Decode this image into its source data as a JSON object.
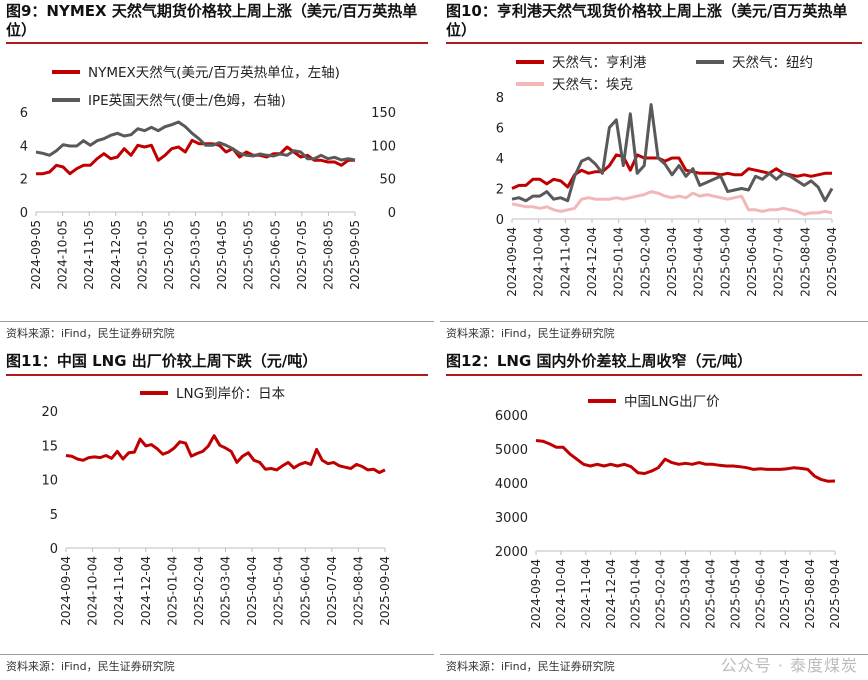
{
  "colors": {
    "accent": "#b0191e",
    "red": "#c00000",
    "gray": "#595959",
    "pink": "#f2b8b8"
  },
  "watermark": "公众号 · 泰度煤炭",
  "charts": [
    {
      "id": "c9",
      "title": "图9：NYMEX 天然气期货价格较上周上涨（美元/百万英热单位）",
      "source": "资料来源：iFind，民生证券研究院",
      "chart_data": {
        "type": "line",
        "title": "NYMEX天然气期货价格较上周上涨（美元/百万英热单位）",
        "x_labels": [
          "2024-09-05",
          "2024-10-05",
          "2024-11-05",
          "2024-12-05",
          "2025-01-05",
          "2025-02-05",
          "2025-03-05",
          "2025-04-05",
          "2025-05-05",
          "2025-06-05",
          "2025-07-05",
          "2025-08-05",
          "2025-09-05"
        ],
        "ylim": [
          0,
          6
        ],
        "yticks": [
          0,
          2,
          4,
          6
        ],
        "y2lim": [
          0,
          150
        ],
        "y2ticks": [
          0,
          50,
          100,
          150
        ],
        "series": [
          {
            "name": "NYMEX天然气(美元/百万英热单位，左轴)",
            "axis": "left",
            "color": "#c00000",
            "values": [
              2.3,
              2.3,
              2.4,
              2.8,
              2.7,
              2.3,
              2.6,
              2.8,
              2.8,
              3.2,
              3.5,
              3.2,
              3.3,
              3.8,
              3.4,
              4.0,
              3.9,
              4.0,
              3.1,
              3.4,
              3.8,
              3.9,
              3.6,
              4.3,
              4.1,
              4.1,
              4.1,
              4.0,
              3.6,
              3.8,
              3.3,
              3.6,
              3.4,
              3.4,
              3.3,
              3.5,
              3.5,
              3.9,
              3.6,
              3.3,
              3.4,
              3.1,
              3.1,
              3.0,
              3.0,
              2.8,
              3.1,
              3.1
            ]
          },
          {
            "name": "IPE英国天然气(便士/色姆，右轴)",
            "axis": "right",
            "color": "#595959",
            "values": [
              90,
              88,
              85,
              92,
              101,
              99,
              99,
              107,
              100,
              107,
              110,
              115,
              118,
              114,
              116,
              125,
              122,
              127,
              122,
              128,
              131,
              135,
              128,
              118,
              110,
              100,
              100,
              104,
              100,
              95,
              88,
              85,
              84,
              87,
              85,
              84,
              87,
              85,
              92,
              90,
              80,
              80,
              85,
              80,
              82,
              78,
              80,
              78
            ]
          }
        ]
      }
    },
    {
      "id": "c10",
      "title": "图10：亨利港天然气现货价格较上周上涨（美元/百万英热单位）",
      "source": "资料来源：iFind，民生证券研究院",
      "chart_data": {
        "type": "line",
        "title": "亨利港天然气现货价格较上周上涨（美元/百万英热单位）",
        "x_labels": [
          "2024-09-04",
          "2024-10-04",
          "2024-11-04",
          "2024-12-04",
          "2025-01-04",
          "2025-02-04",
          "2025-03-04",
          "2025-04-04",
          "2025-05-04",
          "2025-06-04",
          "2025-07-04",
          "2025-08-04",
          "2025-09-04"
        ],
        "ylim": [
          0,
          8
        ],
        "yticks": [
          0,
          2,
          4,
          6,
          8
        ],
        "series": [
          {
            "name": "天然气：亨利港",
            "color": "#c00000",
            "values": [
              2.0,
              2.2,
              2.2,
              2.6,
              2.6,
              2.3,
              2.6,
              2.5,
              2.1,
              2.9,
              3.2,
              3.0,
              3.1,
              3.1,
              3.5,
              4.2,
              4.1,
              3.2,
              4.2,
              4.0,
              4.0,
              4.0,
              3.8,
              4.0,
              4.0,
              3.2,
              3.1,
              3.0,
              3.0,
              3.0,
              2.9,
              3.0,
              2.9,
              2.9,
              3.3,
              3.2,
              3.1,
              3.0,
              3.3,
              3.0,
              2.9,
              2.8,
              2.9,
              2.8,
              2.9,
              3.0,
              3.0
            ]
          },
          {
            "name": "天然气：纽约",
            "color": "#595959",
            "values": [
              1.3,
              1.4,
              1.2,
              1.5,
              1.5,
              1.8,
              1.3,
              1.4,
              1.2,
              2.8,
              3.8,
              4.0,
              3.6,
              3.0,
              6.0,
              6.5,
              3.5,
              6.9,
              3.0,
              3.5,
              7.5,
              4.0,
              3.6,
              2.9,
              3.5,
              2.8,
              3.3,
              2.2,
              2.4,
              2.6,
              2.8,
              1.8,
              1.9,
              2.0,
              1.9,
              2.8,
              2.6,
              3.0,
              2.6,
              3.0,
              2.8,
              2.5,
              2.2,
              2.5,
              2.1,
              1.2,
              2.0
            ]
          },
          {
            "name": "天然气：埃克",
            "color": "#f2b8b8",
            "values": [
              1.0,
              0.9,
              0.8,
              0.8,
              0.7,
              0.8,
              0.6,
              0.5,
              0.6,
              0.7,
              1.3,
              1.4,
              1.3,
              1.3,
              1.3,
              1.4,
              1.3,
              1.4,
              1.5,
              1.6,
              1.8,
              1.7,
              1.5,
              1.4,
              1.5,
              1.4,
              1.7,
              1.5,
              1.6,
              1.5,
              1.4,
              1.3,
              1.4,
              1.5,
              0.6,
              0.6,
              0.5,
              0.6,
              0.6,
              0.7,
              0.6,
              0.5,
              0.3,
              0.4,
              0.4,
              0.5,
              0.4
            ]
          }
        ]
      }
    },
    {
      "id": "c11",
      "title": "图11：中国 LNG 出厂价较上周下跌（元/吨）",
      "source": "资料来源：iFind，民生证券研究院",
      "chart_data": {
        "type": "line",
        "title": "中国LNG出厂价较上周下跌（元/吨）",
        "x_labels": [
          "2024-09-04",
          "2024-10-04",
          "2024-11-04",
          "2024-12-04",
          "2025-01-04",
          "2025-02-04",
          "2025-03-04",
          "2025-04-04",
          "2025-05-04",
          "2025-06-04",
          "2025-07-04",
          "2025-08-04",
          "2025-09-04"
        ],
        "ylim": [
          0,
          20
        ],
        "yticks": [
          0,
          5,
          10,
          15,
          20
        ],
        "series": [
          {
            "name": "LNG到岸价：日本",
            "color": "#c00000",
            "values": [
              13.5,
              13.4,
              13.0,
              12.8,
              13.2,
              13.3,
              13.2,
              13.5,
              13.1,
              14.1,
              13.0,
              13.9,
              14.0,
              15.9,
              14.9,
              15.1,
              14.5,
              13.7,
              14.0,
              14.6,
              15.5,
              15.3,
              13.4,
              13.8,
              14.1,
              14.9,
              16.4,
              15.0,
              14.6,
              14.1,
              12.5,
              13.4,
              13.9,
              12.8,
              12.5,
              11.5,
              11.6,
              11.4,
              12.0,
              12.5,
              11.7,
              12.2,
              12.5,
              12.2,
              14.4,
              12.8,
              12.3,
              12.5,
              12.0,
              11.8,
              11.6,
              12.2,
              11.9,
              11.4,
              11.5,
              11.0,
              11.4
            ]
          }
        ]
      }
    },
    {
      "id": "c12",
      "title": "图12：LNG 国内外价差较上周收窄（元/吨）",
      "source": "资料来源：iFind，民生证券研究院",
      "chart_data": {
        "type": "line",
        "title": "LNG国内外价差较上周收窄（元/吨）",
        "x_labels": [
          "2024-09-04",
          "2024-10-04",
          "2024-11-04",
          "2024-12-04",
          "2025-01-04",
          "2025-02-04",
          "2025-03-04",
          "2025-04-04",
          "2025-05-04",
          "2025-06-04",
          "2025-07-04",
          "2025-08-04",
          "2025-09-04"
        ],
        "ylim": [
          2000,
          6000
        ],
        "yticks": [
          2000,
          3000,
          4000,
          5000,
          6000
        ],
        "series": [
          {
            "name": "中国LNG出厂价",
            "color": "#c00000",
            "values": [
              5250,
              5230,
              5150,
              5050,
              5050,
              4850,
              4700,
              4550,
              4500,
              4550,
              4500,
              4550,
              4500,
              4550,
              4480,
              4300,
              4280,
              4350,
              4450,
              4700,
              4600,
              4550,
              4580,
              4550,
              4600,
              4550,
              4550,
              4520,
              4500,
              4500,
              4480,
              4450,
              4400,
              4420,
              4400,
              4400,
              4400,
              4420,
              4450,
              4430,
              4400,
              4200,
              4100,
              4050,
              4060
            ]
          }
        ]
      }
    }
  ]
}
